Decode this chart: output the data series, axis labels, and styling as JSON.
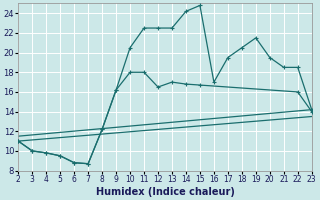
{
  "xlabel": "Humidex (Indice chaleur)",
  "xlim": [
    2,
    23
  ],
  "ylim": [
    8,
    25
  ],
  "xticks": [
    2,
    3,
    4,
    5,
    6,
    7,
    8,
    9,
    10,
    11,
    12,
    13,
    14,
    15,
    16,
    17,
    18,
    19,
    20,
    21,
    22,
    23
  ],
  "yticks": [
    8,
    10,
    12,
    14,
    16,
    18,
    20,
    22,
    24
  ],
  "bg_color": "#cce8e8",
  "grid_color": "#ffffff",
  "line_color": "#1a6e6e",
  "lines": [
    {
      "x": [
        2,
        3,
        4,
        5,
        6,
        7,
        8,
        9,
        10,
        11,
        12,
        13,
        14,
        15,
        22,
        23
      ],
      "y": [
        11,
        10,
        9.8,
        9.5,
        8.8,
        8.7,
        12.2,
        16.2,
        18.0,
        18.0,
        16.5,
        17.0,
        16.8,
        16.7,
        16.0,
        14.0
      ],
      "has_markers": true
    },
    {
      "x": [
        2,
        3,
        4,
        5,
        6,
        7,
        8,
        9,
        10,
        11,
        12,
        13,
        14,
        15,
        16,
        17,
        18,
        19,
        20,
        21,
        22,
        23
      ],
      "y": [
        11,
        10,
        9.8,
        9.5,
        8.8,
        8.7,
        12.2,
        16.2,
        20.5,
        22.5,
        22.5,
        22.5,
        24.2,
        24.8,
        17.0,
        19.5,
        20.5,
        21.5,
        19.5,
        18.5,
        18.5,
        14.2
      ],
      "has_markers": true
    },
    {
      "x": [
        2,
        23
      ],
      "y": [
        11.0,
        13.5
      ],
      "has_markers": false
    },
    {
      "x": [
        2,
        23
      ],
      "y": [
        11.5,
        14.2
      ],
      "has_markers": false
    }
  ]
}
